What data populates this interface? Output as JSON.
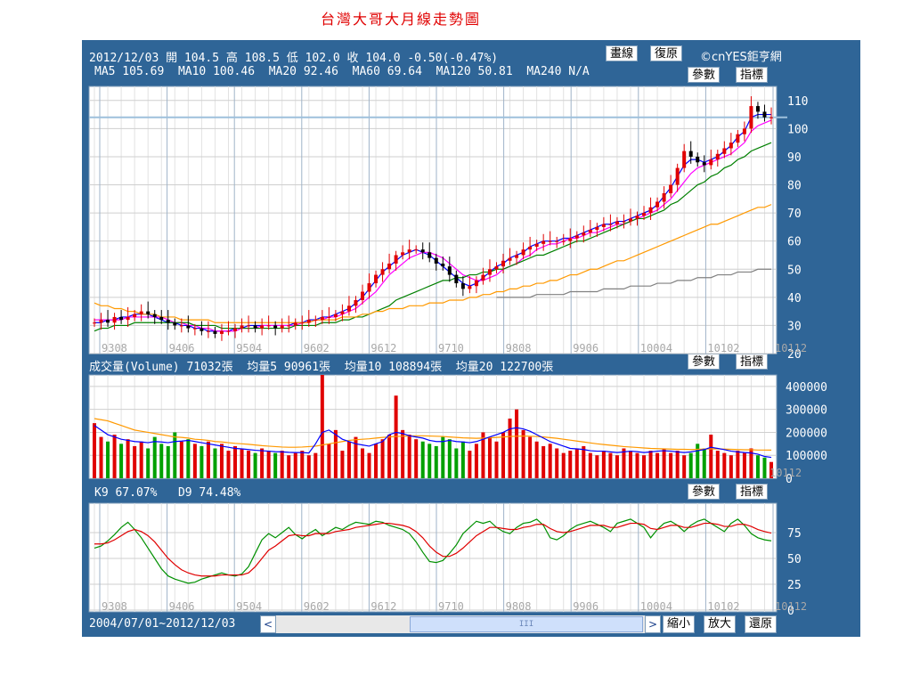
{
  "title": "台灣大哥大月線走勢圖",
  "price_header": {
    "date": "2012/12/03",
    "open_label": "開",
    "open": "104.5",
    "high_label": "高",
    "high": "108.5",
    "low_label": "低",
    "low": "102.0",
    "close_label": "收",
    "close": "104.0",
    "change": "-0.50(-0.47%)"
  },
  "ma_line": {
    "ma5": "MA5 105.69",
    "ma10": "MA10 100.46",
    "ma20": "MA20 92.46",
    "ma60": "MA60 69.64",
    "ma120": "MA120 50.81",
    "ma240": "MA240 N/A"
  },
  "buttons": {
    "draw": "畫線",
    "reset": "復原",
    "brand": "©cnYES鉅亨網",
    "params": "參數",
    "indicator": "指標",
    "zoom_out": "縮小",
    "zoom_in": "放大",
    "restore": "還原"
  },
  "volume_header": {
    "volume": "成交量(Volume) 71032張",
    "avg5": "均量5 90961張",
    "avg10": "均量10 108894張",
    "avg20": "均量20 122700張"
  },
  "kd_header": {
    "k": "K9 67.07%",
    "d": "D9 74.48%"
  },
  "date_range": "2004/07/01~2012/12/03",
  "scroll_thumb": "III",
  "colors": {
    "panel_bg": "#2f6597",
    "up": "#e00000",
    "down": "#000000",
    "vol_down": "#00a000",
    "ma5": "#0000ff",
    "ma10": "#ff00ff",
    "ma20": "#008000",
    "ma60": "#ff9900",
    "ma120": "#808080",
    "k": "#009000",
    "d": "#e00000",
    "title": "#e00000"
  },
  "chart_data": [
    {
      "type": "line",
      "name": "price",
      "x_ticks": [
        "9308",
        "9406",
        "9504",
        "9602",
        "9612",
        "9710",
        "9808",
        "9906",
        "10004",
        "10102",
        "10112"
      ],
      "ylim": [
        20,
        115
      ],
      "y_ticks": [
        110,
        100,
        90,
        80,
        70,
        60,
        50,
        40,
        30,
        20
      ],
      "reference_line": 104,
      "close": [
        31,
        32,
        31,
        33,
        32,
        33,
        34,
        35,
        34,
        33,
        32,
        31,
        30,
        30,
        29,
        29,
        28,
        28,
        27,
        28,
        28,
        29,
        30,
        30,
        29,
        30,
        30,
        29,
        30,
        30,
        31,
        31,
        32,
        32,
        33,
        33,
        34,
        35,
        37,
        39,
        42,
        45,
        48,
        50,
        52,
        55,
        56,
        57,
        57,
        56,
        54,
        52,
        51,
        48,
        45,
        43,
        44,
        46,
        48,
        50,
        51,
        53,
        54,
        55,
        57,
        58,
        59,
        60,
        60,
        60,
        60,
        61,
        62,
        63,
        64,
        65,
        66,
        66,
        67,
        67,
        68,
        69,
        70,
        72,
        74,
        77,
        80,
        86,
        92,
        90,
        88,
        87,
        89,
        91,
        93,
        95,
        98,
        100,
        108,
        106,
        104,
        104
      ],
      "ma_series": [
        {
          "name": "MA5",
          "values": [
            31,
            31,
            32,
            32,
            33,
            33,
            34,
            34,
            34,
            33,
            32,
            31,
            31,
            30,
            30,
            29,
            29,
            28,
            28,
            28,
            28,
            29,
            29,
            30,
            30,
            30,
            30,
            30,
            30,
            30,
            31,
            31,
            32,
            32,
            33,
            33,
            34,
            35,
            36,
            38,
            40,
            43,
            46,
            49,
            51,
            53,
            55,
            56,
            57,
            56,
            55,
            53,
            51,
            49,
            47,
            45,
            44,
            45,
            47,
            49,
            51,
            52,
            54,
            55,
            56,
            58,
            59,
            60,
            60,
            60,
            61,
            61,
            62,
            63,
            64,
            65,
            66,
            66,
            67,
            67,
            68,
            69,
            70,
            71,
            73,
            76,
            79,
            83,
            87,
            89,
            89,
            88,
            89,
            90,
            92,
            94,
            97,
            99,
            104,
            105,
            105,
            105
          ]
        },
        {
          "name": "MA10",
          "values": [
            32,
            32,
            32,
            32,
            32,
            33,
            33,
            33,
            33,
            33,
            33,
            32,
            31,
            31,
            30,
            30,
            29,
            29,
            28,
            28,
            28,
            28,
            29,
            29,
            29,
            30,
            30,
            30,
            30,
            30,
            30,
            31,
            31,
            32,
            32,
            33,
            33,
            34,
            35,
            36,
            38,
            40,
            42,
            45,
            48,
            50,
            52,
            54,
            55,
            56,
            56,
            55,
            54,
            52,
            50,
            48,
            47,
            46,
            46,
            47,
            48,
            50,
            51,
            52,
            54,
            55,
            57,
            58,
            59,
            59,
            60,
            61,
            61,
            62,
            63,
            63,
            64,
            65,
            66,
            66,
            67,
            68,
            69,
            70,
            71,
            73,
            75,
            78,
            81,
            84,
            86,
            87,
            88,
            89,
            90,
            91,
            93,
            95,
            99,
            101,
            102,
            103
          ]
        },
        {
          "name": "MA20",
          "values": [
            28,
            29,
            29,
            30,
            30,
            30,
            31,
            31,
            31,
            31,
            31,
            31,
            31,
            31,
            31,
            30,
            30,
            30,
            30,
            29,
            29,
            29,
            29,
            29,
            29,
            29,
            29,
            29,
            29,
            29,
            30,
            30,
            30,
            30,
            31,
            31,
            31,
            32,
            32,
            33,
            33,
            34,
            35,
            36,
            37,
            39,
            40,
            41,
            42,
            43,
            44,
            45,
            46,
            46,
            47,
            47,
            48,
            48,
            49,
            49,
            50,
            50,
            51,
            52,
            53,
            54,
            55,
            55,
            56,
            57,
            58,
            59,
            60,
            60,
            61,
            62,
            63,
            64,
            65,
            66,
            67,
            68,
            68,
            69,
            70,
            71,
            73,
            74,
            76,
            78,
            80,
            81,
            83,
            84,
            86,
            87,
            89,
            90,
            92,
            93,
            94,
            95
          ]
        },
        {
          "name": "MA60",
          "values": [
            38,
            37,
            37,
            36,
            36,
            35,
            35,
            34,
            34,
            34,
            33,
            33,
            33,
            32,
            32,
            32,
            32,
            32,
            31,
            31,
            31,
            31,
            31,
            31,
            31,
            31,
            31,
            31,
            31,
            31,
            31,
            31,
            31,
            32,
            32,
            32,
            32,
            33,
            33,
            33,
            34,
            34,
            35,
            35,
            36,
            36,
            36,
            37,
            37,
            37,
            38,
            38,
            38,
            39,
            39,
            39,
            40,
            40,
            41,
            41,
            42,
            42,
            43,
            43,
            44,
            44,
            45,
            45,
            46,
            46,
            47,
            48,
            48,
            49,
            50,
            50,
            51,
            52,
            53,
            53,
            54,
            55,
            56,
            57,
            58,
            59,
            60,
            61,
            62,
            63,
            64,
            65,
            66,
            66,
            67,
            68,
            69,
            70,
            71,
            72,
            72,
            73
          ]
        },
        {
          "name": "MA120",
          "values": [
            40,
            40,
            40,
            40,
            40,
            40,
            41,
            41,
            41,
            41,
            41,
            42,
            42,
            42,
            42,
            42,
            43,
            43,
            43,
            43,
            44,
            44,
            44,
            44,
            45,
            45,
            45,
            46,
            46,
            46,
            47,
            47,
            47,
            48,
            48,
            48,
            49,
            49,
            49,
            50,
            50,
            50
          ]
        }
      ]
    },
    {
      "type": "bar",
      "name": "volume",
      "ylim": [
        0,
        450000
      ],
      "y_ticks": [
        400000,
        300000,
        200000,
        100000,
        0
      ],
      "values": [
        240000,
        180000,
        160000,
        190000,
        150000,
        170000,
        140000,
        160000,
        130000,
        180000,
        150000,
        140000,
        200000,
        160000,
        170000,
        150000,
        140000,
        160000,
        130000,
        150000,
        120000,
        140000,
        130000,
        120000,
        110000,
        130000,
        120000,
        110000,
        120000,
        100000,
        110000,
        120000,
        100000,
        110000,
        470000,
        150000,
        210000,
        120000,
        160000,
        180000,
        130000,
        110000,
        150000,
        170000,
        190000,
        360000,
        210000,
        190000,
        170000,
        160000,
        150000,
        140000,
        180000,
        170000,
        130000,
        160000,
        120000,
        150000,
        200000,
        180000,
        160000,
        200000,
        260000,
        300000,
        210000,
        180000,
        160000,
        140000,
        150000,
        130000,
        110000,
        120000,
        130000,
        140000,
        110000,
        100000,
        120000,
        110000,
        100000,
        130000,
        120000,
        110000,
        100000,
        120000,
        110000,
        130000,
        110000,
        120000,
        100000,
        110000,
        150000,
        130000,
        190000,
        120000,
        110000,
        100000,
        120000,
        110000,
        130000,
        100000,
        90000,
        71032
      ],
      "avg5": [
        230000,
        210000,
        190000,
        180000,
        170000,
        165000,
        160000,
        158000,
        155000,
        160000,
        158000,
        155000,
        160000,
        162000,
        165000,
        160000,
        155000,
        150000,
        145000,
        140000,
        135000,
        130000,
        128000,
        125000,
        122000,
        120000,
        118000,
        116000,
        115000,
        113000,
        112000,
        112000,
        110000,
        150000,
        200000,
        210000,
        190000,
        170000,
        160000,
        150000,
        145000,
        140000,
        150000,
        160000,
        190000,
        200000,
        195000,
        185000,
        180000,
        175000,
        165000,
        160000,
        160000,
        165000,
        160000,
        158000,
        155000,
        160000,
        170000,
        180000,
        190000,
        200000,
        215000,
        220000,
        215000,
        205000,
        190000,
        175000,
        160000,
        150000,
        140000,
        130000,
        128000,
        125000,
        120000,
        118000,
        118000,
        115000,
        112000,
        115000,
        118000,
        116000,
        112000,
        115000,
        118000,
        120000,
        118000,
        115000,
        112000,
        115000,
        120000,
        125000,
        135000,
        130000,
        125000,
        118000,
        115000,
        112000,
        110000,
        105000,
        95000,
        90961
      ],
      "avg20": [
        260000,
        255000,
        250000,
        240000,
        230000,
        220000,
        210000,
        205000,
        200000,
        195000,
        190000,
        185000,
        180000,
        178000,
        175000,
        170000,
        168000,
        165000,
        160000,
        158000,
        155000,
        152000,
        150000,
        148000,
        145000,
        142000,
        140000,
        138000,
        136000,
        135000,
        135000,
        136000,
        138000,
        140000,
        145000,
        150000,
        155000,
        160000,
        165000,
        168000,
        170000,
        172000,
        175000,
        178000,
        180000,
        182000,
        183000,
        184000,
        185000,
        185000,
        184000,
        183000,
        182000,
        180000,
        178000,
        176000,
        175000,
        174000,
        175000,
        176000,
        178000,
        180000,
        182000,
        183000,
        184000,
        183000,
        182000,
        180000,
        177000,
        174000,
        170000,
        166000,
        162000,
        158000,
        154000,
        150000,
        147000,
        144000,
        141000,
        138000,
        136000,
        134000,
        132000,
        130000,
        129000,
        128000,
        127000,
        126000,
        126000,
        125000,
        126000,
        127000,
        128000,
        128000,
        127000,
        126000,
        125000,
        124000,
        124000,
        123000,
        123000,
        122700
      ]
    },
    {
      "type": "line",
      "name": "KD",
      "ylim": [
        0,
        100
      ],
      "y_ticks": [
        75,
        50,
        25,
        0
      ],
      "k": [
        60,
        62,
        67,
        73,
        80,
        85,
        78,
        70,
        60,
        50,
        40,
        33,
        30,
        28,
        26,
        27,
        30,
        32,
        34,
        36,
        34,
        33,
        35,
        42,
        55,
        68,
        74,
        70,
        75,
        80,
        73,
        69,
        74,
        78,
        72,
        76,
        80,
        78,
        82,
        85,
        84,
        83,
        86,
        85,
        82,
        80,
        78,
        74,
        66,
        56,
        47,
        46,
        48,
        55,
        63,
        74,
        80,
        86,
        84,
        86,
        80,
        76,
        74,
        80,
        84,
        85,
        88,
        82,
        70,
        68,
        72,
        78,
        82,
        84,
        86,
        83,
        80,
        76,
        84,
        86,
        88,
        84,
        80,
        70,
        78,
        84,
        86,
        82,
        76,
        82,
        86,
        88,
        84,
        80,
        76,
        84,
        88,
        82,
        74,
        70,
        68,
        67
      ],
      "d": [
        64,
        64,
        65,
        68,
        72,
        76,
        78,
        76,
        72,
        66,
        58,
        50,
        44,
        39,
        36,
        34,
        33,
        33,
        33,
        34,
        34,
        34,
        34,
        36,
        42,
        50,
        58,
        62,
        67,
        72,
        73,
        72,
        72,
        74,
        74,
        74,
        76,
        77,
        78,
        80,
        81,
        82,
        83,
        84,
        84,
        83,
        82,
        80,
        76,
        70,
        62,
        56,
        52,
        52,
        55,
        60,
        66,
        72,
        76,
        80,
        80,
        79,
        78,
        78,
        80,
        81,
        83,
        83,
        79,
        76,
        75,
        76,
        78,
        80,
        82,
        82,
        82,
        80,
        80,
        82,
        84,
        84,
        83,
        79,
        78,
        80,
        82,
        82,
        80,
        80,
        82,
        84,
        84,
        83,
        81,
        81,
        83,
        83,
        81,
        78,
        76,
        74.48
      ]
    }
  ]
}
